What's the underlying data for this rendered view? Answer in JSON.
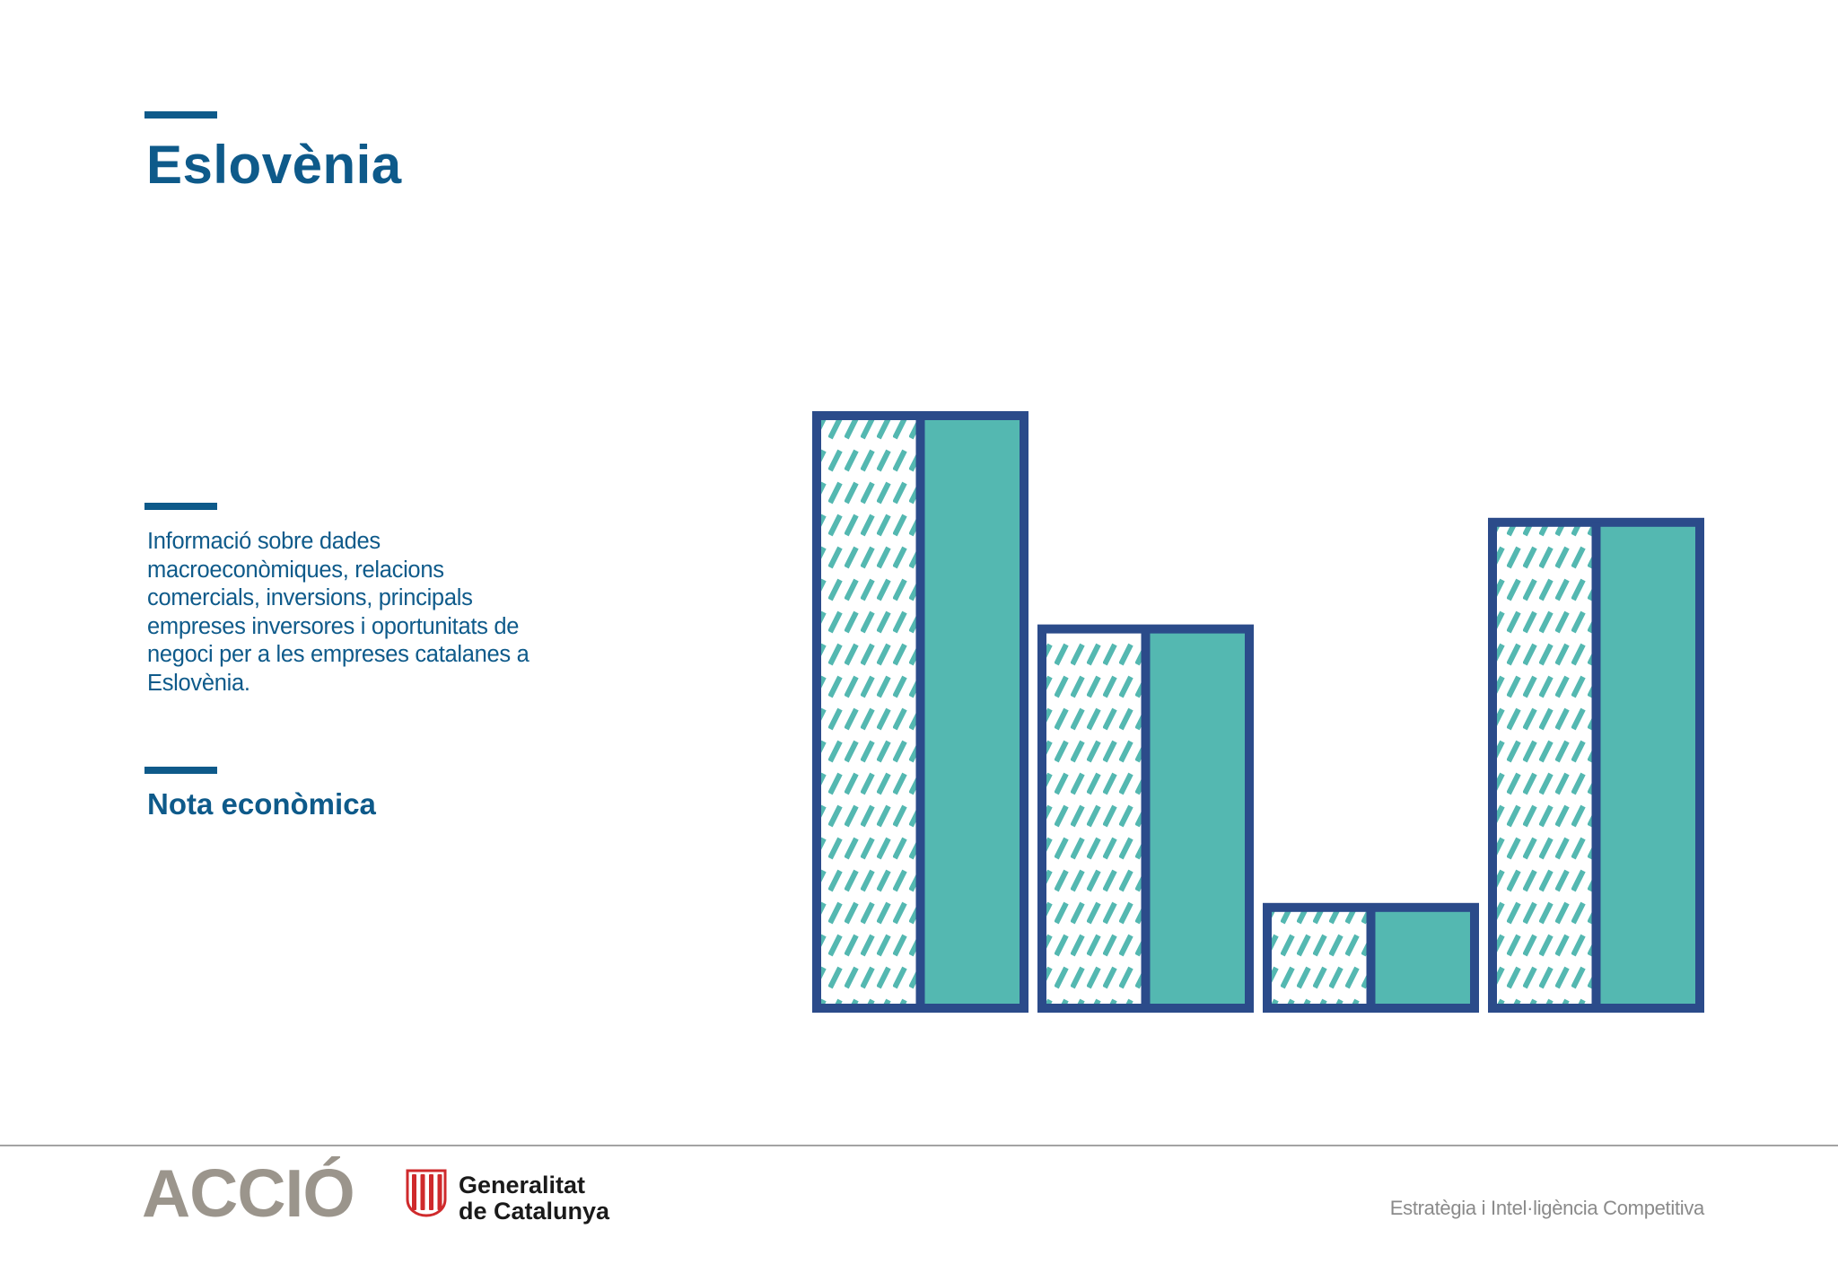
{
  "colors": {
    "brand_blue": "#0e5a8a",
    "bar_outline": "#2b4b8a",
    "bar_fill": "#54b8b1",
    "logo_grey": "#9b958c",
    "tagline_grey": "#8a8a8a",
    "senyera_red": "#cf2a2c"
  },
  "header": {
    "title": "Eslovènia"
  },
  "intro": {
    "description": "Informació sobre dades macroeconòmiques, relacions comercials, inversions, principals empreses inversores i oportunitats de negoci per a les empreses catalanes a Eslovènia."
  },
  "document_type": {
    "label": "Nota econòmica"
  },
  "illustration": {
    "icon": "decorative-bar-chart-icon",
    "levels": [
      1.0,
      0.64,
      0.17,
      0.82
    ]
  },
  "footer": {
    "accio_logo": "ACCIÓ",
    "generalitat_logo": {
      "icon": "senyera-shield-icon",
      "line1": "Generalitat",
      "line2": "de Catalunya"
    },
    "tagline": "Estratègia i Intel·ligència Competitiva"
  }
}
